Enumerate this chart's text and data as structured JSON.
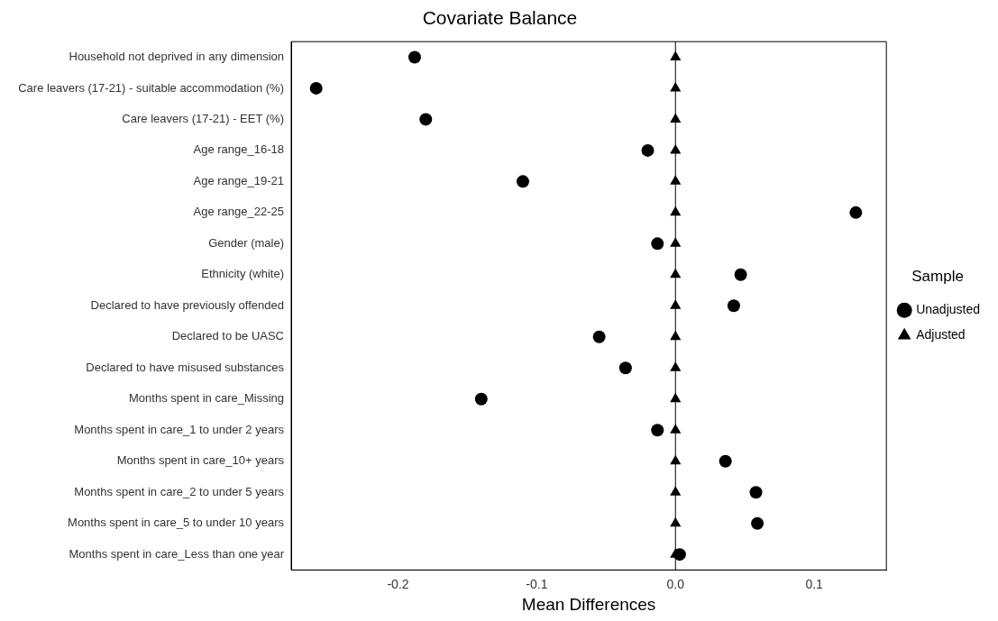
{
  "chart_data": {
    "type": "scatter",
    "title": "Covariate Balance",
    "xlabel": "Mean Differences",
    "legend_title": "Sample",
    "categories": [
      "Household not deprived in any dimension",
      "Care leavers (17-21) - suitable accommodation (%)",
      "Care leavers (17-21) - EET (%)",
      "Age range_16-18",
      "Age range_19-21",
      "Age range_22-25",
      "Gender (male)",
      "Ethnicity (white)",
      "Declared to have previously offended",
      "Declared to be UASC",
      "Declared to have misused substances",
      "Months spent in care_Missing",
      "Months spent in care_1 to under 2 years",
      "Months spent in care_10+ years",
      "Months spent in care_2 to under 5 years",
      "Months spent in care_5 to under 10 years",
      "Months spent in care_Less than one year"
    ],
    "series": [
      {
        "name": "Unadjusted",
        "color": "#000000",
        "marker": "circle",
        "values": [
          -0.188,
          -0.259,
          -0.18,
          -0.02,
          -0.11,
          0.13,
          -0.013,
          0.047,
          0.042,
          -0.055,
          -0.036,
          -0.14,
          -0.013,
          0.036,
          0.058,
          0.059,
          0.003
        ]
      },
      {
        "name": "Adjusted",
        "color": "#000000",
        "marker": "triangle",
        "values": [
          0,
          0,
          0,
          0,
          0,
          0,
          0,
          0,
          0,
          0,
          0,
          0,
          0,
          0,
          0,
          0,
          0
        ]
      }
    ],
    "orientation": "horizontal",
    "xlim": [
      -0.277,
      0.152
    ],
    "xticks": [
      -0.2,
      -0.1,
      {
        "value": 0,
        "label": "0.0"
      },
      0.1
    ],
    "ref_lines": [
      {
        "axis": "x",
        "value": 0,
        "color": "#000000",
        "line_style": "solid"
      }
    ],
    "grid": false,
    "legend": "right"
  }
}
